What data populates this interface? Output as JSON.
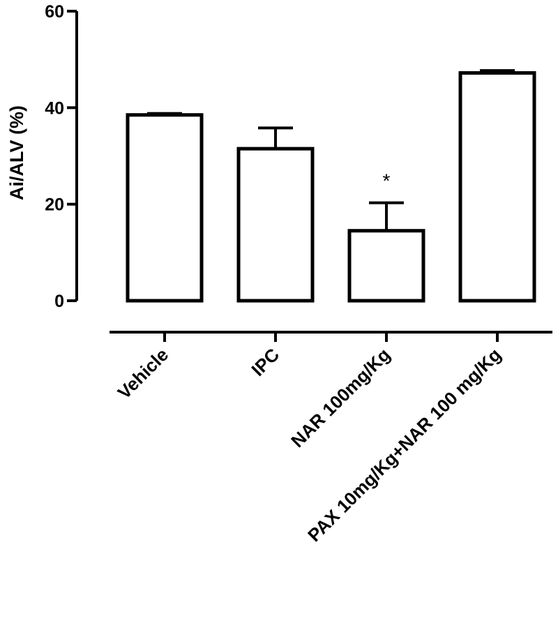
{
  "chart_data": {
    "type": "bar",
    "title": "",
    "xlabel": "",
    "ylabel": "Ai/ALV (%)",
    "ylim": [
      0,
      60
    ],
    "yticks": [
      0,
      20,
      40,
      60
    ],
    "categories": [
      "Vehicle",
      "IPC",
      "NAR 100mg/Kg",
      "PAX 10mg/Kg+NAR 100 mg/Kg"
    ],
    "values": [
      38.5,
      31.5,
      14.5,
      47.2
    ],
    "error": [
      0.3,
      4.3,
      5.8,
      0.5
    ],
    "annotations": [
      {
        "category": "NAR 100mg/Kg",
        "text": "*"
      }
    ],
    "grid": false,
    "legend": "none",
    "bar_fill": "#ffffff",
    "bar_stroke": "#000000"
  }
}
